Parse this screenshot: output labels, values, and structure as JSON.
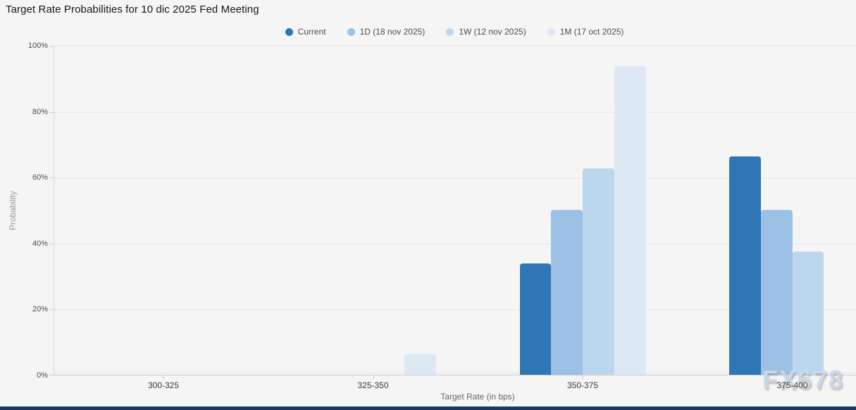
{
  "watermark": "FX678",
  "colors": {
    "background": "#f5f5f6",
    "axis_line": "#cfcfcf",
    "gridline": "#d9d9d9",
    "title_text": "#161616",
    "legend_text": "#4c4c4c",
    "tick_label_text": "#4d4d4d",
    "category_label_text": "#3c3c3c",
    "axis_title_text": "#666666",
    "y_axis_title_text": "#9b9b9b",
    "watermark_text": "#cbd8e9",
    "bottom_bar": "#1e3a64"
  },
  "chart_data": {
    "type": "bar",
    "title": "Target Rate Probabilities for 10 dic 2025 Fed Meeting",
    "categories": [
      "300-325",
      "325-350",
      "350-375",
      "375-400"
    ],
    "series": [
      {
        "name": "Current",
        "color": "#2F76B5",
        "values": [
          0,
          0,
          33.7,
          66.3
        ]
      },
      {
        "name": "1D (18 nov 2025)",
        "color": "#9CC1E5",
        "values": [
          0,
          0,
          50.1,
          49.9
        ]
      },
      {
        "name": "1W (12 nov 2025)",
        "color": "#BCD7ED",
        "values": [
          0,
          0,
          62.7,
          37.3
        ]
      },
      {
        "name": "1M (17 oct 2025)",
        "color": "#DCE9F5",
        "values": [
          0,
          6.4,
          93.6,
          0
        ]
      }
    ],
    "xlabel": "Target Rate (in bps)",
    "ylabel": "Probability",
    "ylim": [
      0,
      100
    ],
    "yticks": [
      "0%",
      "20%",
      "40%",
      "60%",
      "80%",
      "100%"
    ],
    "grid": "horizontal-dotted",
    "legend_position": "top-center"
  }
}
